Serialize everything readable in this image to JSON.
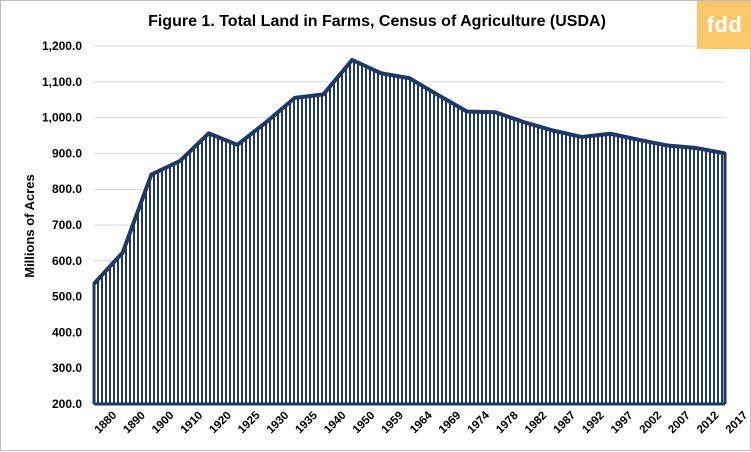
{
  "logo": {
    "text": "fdd",
    "color": "#fbc76b"
  },
  "chart_data": {
    "type": "area",
    "title": "Figure 1. Total Land in Farms, Census of Agriculture (USDA)",
    "xlabel": "",
    "ylabel": "Millions of Acres",
    "ylim": [
      200,
      1200
    ],
    "yticks": [
      "200.0",
      "300.0",
      "400.0",
      "500.0",
      "600.0",
      "700.0",
      "800.0",
      "900.0",
      "1,000.0",
      "1,100.0",
      "1,200.0"
    ],
    "grid": true,
    "legend": "none",
    "categories": [
      "1880",
      "1890",
      "1900",
      "1910",
      "1920",
      "1925",
      "1930",
      "1935",
      "1940",
      "1950",
      "1959",
      "1964",
      "1969",
      "1974",
      "1978",
      "1982",
      "1987",
      "1992",
      "1997",
      "2002",
      "2007",
      "2012",
      "2017"
    ],
    "series": [
      {
        "values": [
          536,
          623,
          841,
          879,
          956,
          924,
          987,
          1055,
          1065,
          1161,
          1124,
          1110,
          1063,
          1017,
          1015,
          987,
          964,
          946,
          955,
          938,
          922,
          915,
          900
        ]
      }
    ],
    "colors": {
      "line": "#1f3864",
      "fill": "#1f3864",
      "stripe_gap": "#ffffff",
      "grid": "#d9d9d9"
    }
  }
}
